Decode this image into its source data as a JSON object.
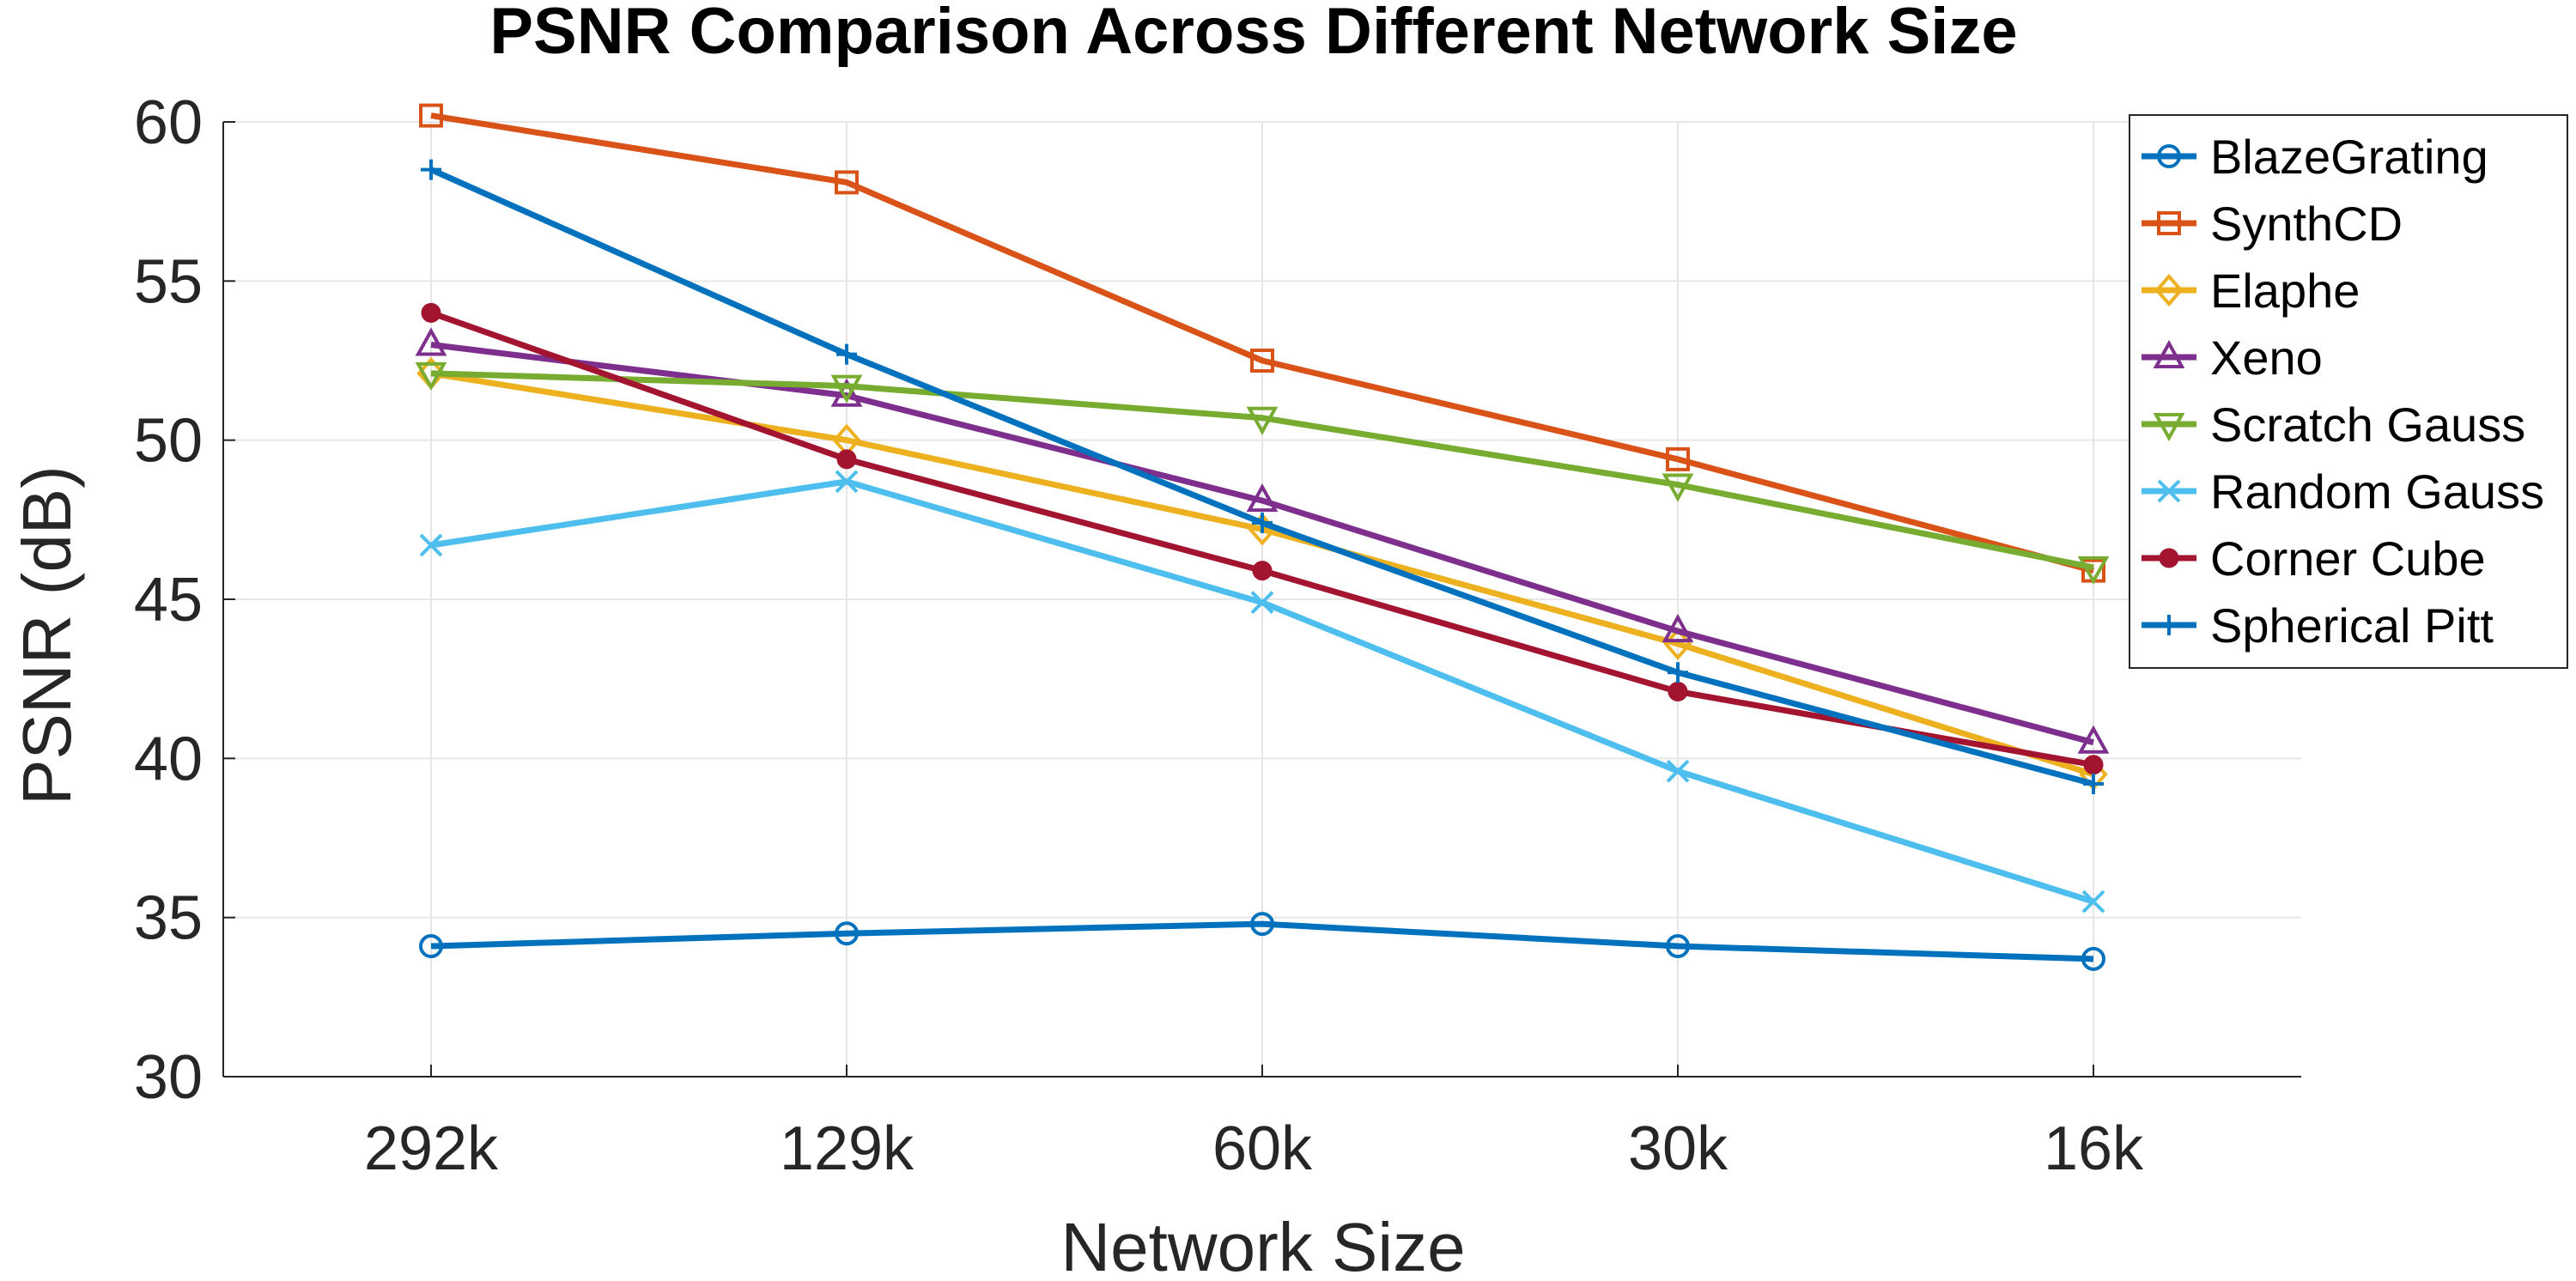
{
  "chart_data": {
    "type": "line",
    "title": "PSNR Comparison Across Different Network Size",
    "xlabel": "Network Size",
    "ylabel": "PSNR (dB)",
    "categories": [
      "292k",
      "129k",
      "60k",
      "30k",
      "16k"
    ],
    "ylim": [
      30,
      60
    ],
    "yticks": [
      30,
      35,
      40,
      45,
      50,
      55,
      60
    ],
    "grid": true,
    "legend_position": "top-right",
    "series": [
      {
        "name": "BlazeGrating",
        "marker": "circle",
        "color": "#0072BD",
        "values": [
          34.1,
          34.5,
          34.8,
          34.1,
          33.7
        ]
      },
      {
        "name": "SynthCD",
        "marker": "square",
        "color": "#D95319",
        "values": [
          60.2,
          58.1,
          52.5,
          49.4,
          45.9
        ]
      },
      {
        "name": "Elaphe",
        "marker": "diamond",
        "color": "#EDB120",
        "values": [
          52.1,
          50.0,
          47.2,
          43.6,
          39.5
        ]
      },
      {
        "name": "Xeno",
        "marker": "triangle-up",
        "color": "#7E2F8E",
        "values": [
          53.0,
          51.4,
          48.1,
          44.0,
          40.5
        ]
      },
      {
        "name": "Scratch Gauss",
        "marker": "triangle-down",
        "color": "#77AC30",
        "values": [
          52.1,
          51.7,
          50.7,
          48.6,
          46.0
        ]
      },
      {
        "name": "Random Gauss",
        "marker": "x",
        "color": "#4DBEEE",
        "values": [
          46.7,
          48.7,
          44.9,
          39.6,
          35.5
        ]
      },
      {
        "name": "Corner Cube",
        "marker": "dot",
        "color": "#A2142F",
        "values": [
          54.0,
          49.4,
          45.9,
          42.1,
          39.8
        ]
      },
      {
        "name": "Spherical Pitt",
        "marker": "plus",
        "color": "#0072BD",
        "values": [
          58.5,
          52.7,
          47.4,
          42.7,
          39.2
        ]
      }
    ]
  }
}
